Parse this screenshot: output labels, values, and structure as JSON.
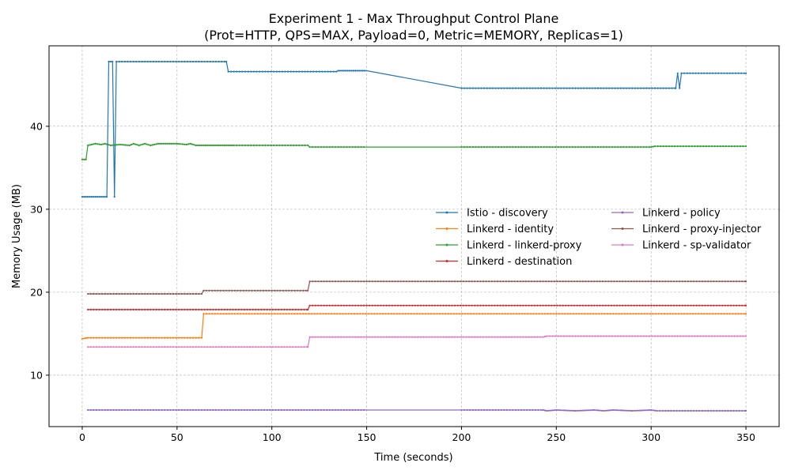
{
  "chart_data": {
    "type": "line",
    "title": "Experiment 1 - Max Throughput Control Plane",
    "subtitle": "(Prot=HTTP, QPS=MAX, Payload=0, Metric=MEMORY, Replicas=1)",
    "xlabel": "Time (seconds)",
    "ylabel": "Memory Usage (MB)",
    "xlim": [
      -17.5,
      367.5
    ],
    "ylim": [
      3.8,
      49.7
    ],
    "xticks": [
      0,
      50,
      100,
      150,
      200,
      250,
      300,
      350
    ],
    "yticks": [
      10,
      20,
      30,
      40
    ],
    "grid": true,
    "legend_position": "center-right",
    "series": [
      {
        "name": "Istio - discovery",
        "color": "#1f77b4",
        "points": [
          [
            0,
            31.5
          ],
          [
            13,
            31.5
          ],
          [
            14,
            47.8
          ],
          [
            16,
            47.8
          ],
          [
            17,
            31.5
          ],
          [
            18,
            47.8
          ],
          [
            76,
            47.8
          ],
          [
            77,
            46.6
          ],
          [
            134,
            46.6
          ],
          [
            135,
            46.7
          ],
          [
            150,
            46.7
          ],
          [
            200,
            44.6
          ],
          [
            313,
            44.6
          ],
          [
            314,
            46.4
          ],
          [
            315,
            44.6
          ],
          [
            316,
            46.4
          ],
          [
            350,
            46.4
          ]
        ]
      },
      {
        "name": "Linkerd - identity",
        "color": "#ff7f0e",
        "points": [
          [
            0,
            14.4
          ],
          [
            3,
            14.5
          ],
          [
            63,
            14.5
          ],
          [
            64,
            17.4
          ],
          [
            350,
            17.4
          ]
        ]
      },
      {
        "name": "Linkerd - linkerd-proxy",
        "color": "#2ca02c",
        "points": [
          [
            0,
            36.0
          ],
          [
            2,
            36.0
          ],
          [
            3,
            37.7
          ],
          [
            7,
            37.9
          ],
          [
            10,
            37.8
          ],
          [
            12,
            37.9
          ],
          [
            15,
            37.7
          ],
          [
            20,
            37.8
          ],
          [
            25,
            37.7
          ],
          [
            27,
            37.9
          ],
          [
            30,
            37.7
          ],
          [
            33,
            37.9
          ],
          [
            36,
            37.7
          ],
          [
            40,
            37.9
          ],
          [
            50,
            37.9
          ],
          [
            55,
            37.8
          ],
          [
            57,
            37.9
          ],
          [
            60,
            37.7
          ],
          [
            80,
            37.7
          ],
          [
            119,
            37.7
          ],
          [
            120,
            37.5
          ],
          [
            150,
            37.5
          ],
          [
            200,
            37.5
          ],
          [
            300,
            37.5
          ],
          [
            302,
            37.6
          ],
          [
            350,
            37.6
          ]
        ]
      },
      {
        "name": "Linkerd - destination",
        "color": "#d62728",
        "points": [
          [
            3,
            17.9
          ],
          [
            119,
            17.9
          ],
          [
            120,
            18.4
          ],
          [
            350,
            18.4
          ]
        ]
      },
      {
        "name": "Linkerd - policy",
        "color": "#9467bd",
        "points": [
          [
            3,
            5.8
          ],
          [
            150,
            5.8
          ],
          [
            200,
            5.8
          ],
          [
            243,
            5.8
          ],
          [
            245,
            5.7
          ],
          [
            250,
            5.8
          ],
          [
            260,
            5.7
          ],
          [
            270,
            5.8
          ],
          [
            275,
            5.7
          ],
          [
            280,
            5.8
          ],
          [
            290,
            5.7
          ],
          [
            300,
            5.8
          ],
          [
            303,
            5.7
          ],
          [
            350,
            5.7
          ]
        ]
      },
      {
        "name": "Linkerd - proxy-injector",
        "color": "#8c564b",
        "points": [
          [
            3,
            19.8
          ],
          [
            63,
            19.8
          ],
          [
            64,
            20.2
          ],
          [
            119,
            20.2
          ],
          [
            120,
            21.3
          ],
          [
            350,
            21.3
          ]
        ]
      },
      {
        "name": "Linkerd - sp-validator",
        "color": "#e377c2",
        "points": [
          [
            3,
            13.4
          ],
          [
            119,
            13.4
          ],
          [
            120,
            14.6
          ],
          [
            243,
            14.6
          ],
          [
            245,
            14.7
          ],
          [
            350,
            14.7
          ]
        ]
      }
    ]
  }
}
